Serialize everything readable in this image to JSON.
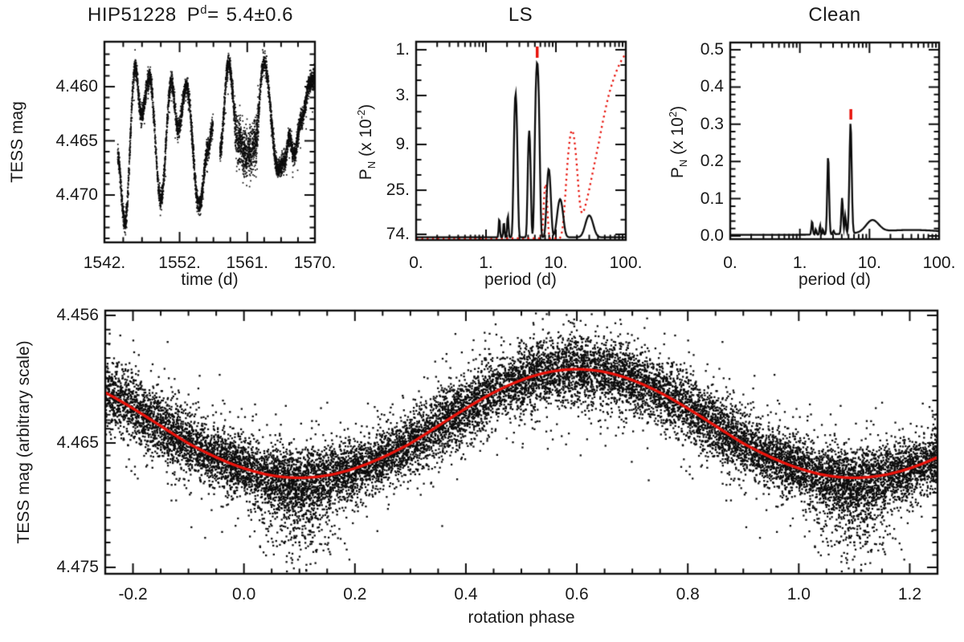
{
  "figure": {
    "background": "#ffffff",
    "text_color": "#1a1a1a",
    "curve_black": "#0d0d0d",
    "accent_red": "#e8130b"
  },
  "panels": {
    "lightcurve": {
      "title": {
        "name": "HIP51228",
        "p_symbol": "P",
        "p_sup": "d",
        "eq": "=",
        "value": "5.4±0.6"
      },
      "ylabel": "TESS mag",
      "xlabel": "time (d)",
      "ytick_labels": [
        "4.460",
        "4.465",
        "4.470"
      ],
      "xtick_labels": [
        "1542.",
        "1552.",
        "1561.",
        "1570."
      ]
    },
    "ls": {
      "title": "LS",
      "ylabel": {
        "sym": "P",
        "sub": "N",
        "scale": " (x 10",
        "exp": "-2",
        "close": ")"
      },
      "xlabel": "period (d)",
      "ytick_labels": [
        "74.",
        "25.",
        "9.",
        "3.",
        "1."
      ],
      "xtick_labels": [
        "0.",
        "1.",
        "10.",
        "100."
      ]
    },
    "clean": {
      "title": "Clean",
      "ylabel": {
        "sym": "P",
        "sub": "N",
        "scale": " (x 10",
        "exp": "2",
        "close": ")"
      },
      "xlabel": "period (d)",
      "ytick_labels": [
        "0.5",
        "0.4",
        "0.3",
        "0.2",
        "0.1",
        "0.0"
      ],
      "xtick_labels": [
        "0.",
        "1.",
        "10.",
        "100."
      ]
    },
    "phase": {
      "ylabel": "TESS mag (arbitrary scale)",
      "xlabel": "rotation phase",
      "ytick_labels": [
        "4.456",
        "4.465",
        "4.475"
      ],
      "xtick_labels": [
        "-0.2",
        "0.0",
        "0.2",
        "0.4",
        "0.6",
        "0.8",
        "1.0",
        "1.2"
      ]
    }
  },
  "chart_data": [
    {
      "id": "lightcurve",
      "type": "scatter",
      "title": "HIP51228 P^d = 5.4±0.6",
      "xlabel": "time (d)",
      "ylabel": "TESS mag",
      "xlim": [
        1542,
        1570
      ],
      "ylim_mag_inverted": [
        4.4744,
        4.4558
      ],
      "xticks": [
        1542,
        1552,
        1561,
        1570
      ],
      "yticks": [
        4.46,
        4.465,
        4.47
      ],
      "data_start": 1543.75,
      "data_end": 1570.4,
      "gap_days": [
        1556.45,
        1557.35
      ],
      "keypoints": [
        [
          1543.75,
          4.4663
        ],
        [
          1544.7,
          4.4726
        ],
        [
          1546.1,
          4.4583
        ],
        [
          1546.9,
          4.4626
        ],
        [
          1548.0,
          4.4592
        ],
        [
          1549.5,
          4.4704
        ],
        [
          1550.9,
          4.4596
        ],
        [
          1551.8,
          4.4639
        ],
        [
          1552.9,
          4.4599
        ],
        [
          1554.6,
          4.471
        ],
        [
          1555.8,
          4.4656
        ],
        [
          1556.45,
          4.4636
        ],
        [
          1557.35,
          4.466
        ],
        [
          1558.5,
          4.4578
        ],
        [
          1559.8,
          4.465
        ],
        [
          1560.9,
          4.4663
        ],
        [
          1562.0,
          4.4655
        ],
        [
          1563.2,
          4.4577
        ],
        [
          1565.1,
          4.4676
        ],
        [
          1566.0,
          4.4668
        ],
        [
          1566.6,
          4.4646
        ],
        [
          1567.2,
          4.4663
        ],
        [
          1568.2,
          4.463
        ],
        [
          1569.4,
          4.4596
        ],
        [
          1570.4,
          4.4588
        ]
      ],
      "noise_sigma": 0.00045,
      "noisy_region": {
        "trange": [
          1559.3,
          1562.5
        ],
        "sigma": 0.0011
      },
      "n_points": 6500
    },
    {
      "id": "ls",
      "type": "line",
      "title": "LS",
      "xlabel": "period (d)",
      "ylabel": "P_N (x 10^-2)",
      "x_log10_range": [
        -1,
        2
      ],
      "xticks": [
        0.1,
        1,
        10,
        100
      ],
      "ytick_values": [
        1,
        3,
        9,
        25,
        74
      ],
      "y_scale": "log",
      "series": [
        {
          "name": "LS periodogram",
          "color": "black",
          "style": "solid",
          "baseline": 0.93,
          "peaks_period_height_logwidth": [
            [
              1.55,
              1.5,
              0.008
            ],
            [
              1.8,
              1.35,
              0.008
            ],
            [
              2.05,
              1.6,
              0.009
            ],
            [
              2.65,
              26,
              0.016
            ],
            [
              4.15,
              12,
              0.014
            ],
            [
              5.4,
              55,
              0.018
            ],
            [
              7.9,
              5.0,
              0.022
            ],
            [
              11.5,
              2.4,
              0.035
            ],
            [
              30,
              1.6,
              0.05
            ]
          ]
        },
        {
          "name": "spectral window",
          "color": "red",
          "style": "dotted",
          "baseline": 0.88,
          "peaks_period_height_logwidth": [
            [
              7.1,
              3.5,
              0.02
            ],
            [
              17,
              12,
              0.05
            ],
            [
              130,
              75,
              0.24
            ]
          ]
        }
      ],
      "peak_marker_period": 5.4
    },
    {
      "id": "clean",
      "type": "line",
      "title": "Clean",
      "xlabel": "period (d)",
      "ylabel": "P_N (x 10^2)",
      "x_log10_range": [
        -1,
        2
      ],
      "xticks": [
        0.1,
        1,
        10,
        100
      ],
      "ylim": [
        0,
        0.52
      ],
      "yticks": [
        0.0,
        0.1,
        0.2,
        0.3,
        0.4,
        0.5
      ],
      "series": [
        {
          "name": "Clean periodogram",
          "color": "black",
          "style": "solid",
          "baseline": 0.003,
          "peaks_period_height_logwidth": [
            [
              1.5,
              0.04,
              0.01
            ],
            [
              1.7,
              0.018,
              0.008
            ],
            [
              1.95,
              0.028,
              0.008
            ],
            [
              2.15,
              0.018,
              0.007
            ],
            [
              2.55,
              0.215,
              0.013
            ],
            [
              3.05,
              0.012,
              0.01
            ],
            [
              4.05,
              0.1,
              0.012
            ],
            [
              4.5,
              0.05,
              0.01
            ],
            [
              5.35,
              0.3,
              0.016
            ],
            [
              11,
              0.035,
              0.09
            ],
            [
              40,
              0.016,
              0.55
            ]
          ]
        }
      ],
      "peak_marker_period": 5.4
    },
    {
      "id": "phase",
      "type": "scatter",
      "xlabel": "rotation phase",
      "ylabel": "TESS mag (arbitrary scale)",
      "xlim": [
        -0.25,
        1.25
      ],
      "xticks": [
        -0.2,
        0.0,
        0.2,
        0.4,
        0.6,
        0.8,
        1.0,
        1.2
      ],
      "yticks": [
        4.456,
        4.465,
        4.475
      ],
      "sine_fit": {
        "mean_mag": 4.4638,
        "amplitude_mag": 0.004,
        "phase_of_max_brightness": 0.6,
        "color": "red"
      },
      "n_points": 9500,
      "noise_sigma": 0.0011,
      "broad_fraction": 0.18,
      "broad_sigma": 0.0021,
      "faint_tail": {
        "phase_center": 0.1,
        "phase_sigma": 0.04,
        "n": 450,
        "extra_depth_sigma": 0.0026
      },
      "duplication": "each point repeated at phase ±1 inside xlim"
    }
  ]
}
